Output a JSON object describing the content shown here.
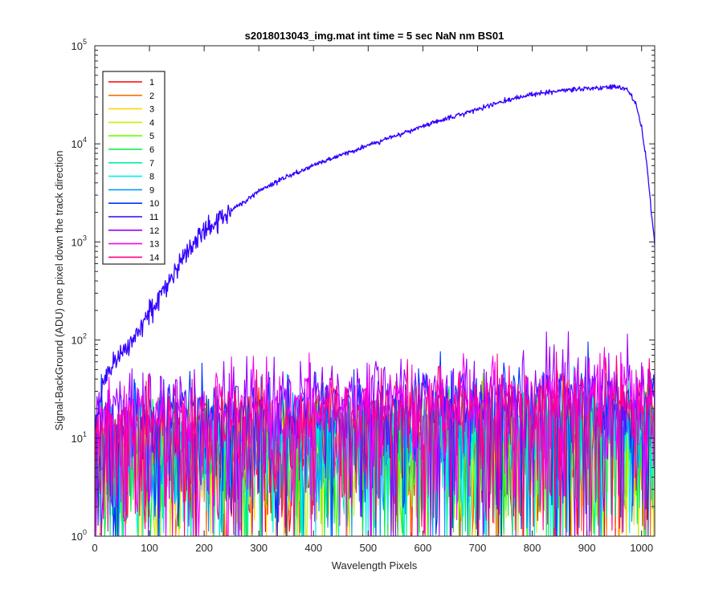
{
  "figure": {
    "title": "s2018013043_img.mat int time = 5 sec  NaN nm BS01",
    "xlabel": "Wavelength Pixels",
    "ylabel": "Signal-BackGround (ADU) one pixel down the track direction"
  },
  "chart_data": {
    "type": "line",
    "title": "s2018013043_img.mat int time = 5 sec  NaN nm BS01",
    "xlabel": "Wavelength Pixels",
    "ylabel": "Signal-BackGround (ADU) one pixel down the track direction",
    "xlim": [
      0,
      1024
    ],
    "ylim": [
      1,
      100000
    ],
    "yscale": "log",
    "grid": false,
    "legend_position": "top-left",
    "x_ticks": [
      {
        "value": 0,
        "label": "0"
      },
      {
        "value": 100,
        "label": "100"
      },
      {
        "value": 200,
        "label": "200"
      },
      {
        "value": 300,
        "label": "300"
      },
      {
        "value": 400,
        "label": "400"
      },
      {
        "value": 500,
        "label": "500"
      },
      {
        "value": 600,
        "label": "600"
      },
      {
        "value": 700,
        "label": "700"
      },
      {
        "value": 800,
        "label": "800"
      },
      {
        "value": 900,
        "label": "900"
      },
      {
        "value": 1000,
        "label": "1000"
      }
    ],
    "y_ticks": [
      {
        "value": 1,
        "base": "10",
        "exp": "0"
      },
      {
        "value": 10,
        "base": "10",
        "exp": "1"
      },
      {
        "value": 100,
        "base": "10",
        "exp": "2"
      },
      {
        "value": 1000,
        "base": "10",
        "exp": "3"
      },
      {
        "value": 10000,
        "base": "10",
        "exp": "4"
      },
      {
        "value": 100000,
        "base": "10",
        "exp": "5"
      }
    ],
    "series": [
      {
        "name": "1",
        "color": "#ff0000",
        "kind": "noise",
        "level": 12
      },
      {
        "name": "2",
        "color": "#ff6f00",
        "kind": "noise",
        "level": 12
      },
      {
        "name": "3",
        "color": "#ffd400",
        "kind": "noise",
        "level": 12
      },
      {
        "name": "4",
        "color": "#c8f000",
        "kind": "noise",
        "level": 12
      },
      {
        "name": "5",
        "color": "#66ff00",
        "kind": "noise",
        "level": 13
      },
      {
        "name": "6",
        "color": "#00ee44",
        "kind": "noise",
        "level": 13
      },
      {
        "name": "7",
        "color": "#00f0a0",
        "kind": "noise",
        "level": 13
      },
      {
        "name": "8",
        "color": "#00f0f0",
        "kind": "noise",
        "level": 14
      },
      {
        "name": "9",
        "color": "#0099ff",
        "kind": "noise",
        "level": 16
      },
      {
        "name": "10",
        "color": "#0033ff",
        "kind": "noise",
        "level": 24
      },
      {
        "name": "11",
        "color": "#3300ff",
        "kind": "signal",
        "points": [
          [
            0,
            15
          ],
          [
            10,
            25
          ],
          [
            20,
            40
          ],
          [
            30,
            55
          ],
          [
            40,
            62
          ],
          [
            50,
            75
          ],
          [
            75,
            110
          ],
          [
            100,
            190
          ],
          [
            125,
            330
          ],
          [
            150,
            560
          ],
          [
            175,
            850
          ],
          [
            200,
            1300
          ],
          [
            250,
            2100
          ],
          [
            300,
            3300
          ],
          [
            350,
            4600
          ],
          [
            400,
            6000
          ],
          [
            450,
            7700
          ],
          [
            500,
            9700
          ],
          [
            550,
            12000
          ],
          [
            600,
            15000
          ],
          [
            650,
            18500
          ],
          [
            700,
            22500
          ],
          [
            750,
            27500
          ],
          [
            800,
            32000
          ],
          [
            850,
            35000
          ],
          [
            900,
            36500
          ],
          [
            940,
            37500
          ],
          [
            960,
            38000
          ],
          [
            975,
            35000
          ],
          [
            990,
            25000
          ],
          [
            1000,
            15000
          ],
          [
            1010,
            6000
          ],
          [
            1020,
            1500
          ],
          [
            1024,
            950
          ]
        ]
      },
      {
        "name": "12",
        "color": "#9900ff",
        "kind": "noise",
        "level": 32
      },
      {
        "name": "13",
        "color": "#ff00f0",
        "kind": "noise",
        "level": 26
      },
      {
        "name": "14",
        "color": "#ff0080",
        "kind": "noise",
        "level": 20
      }
    ]
  }
}
